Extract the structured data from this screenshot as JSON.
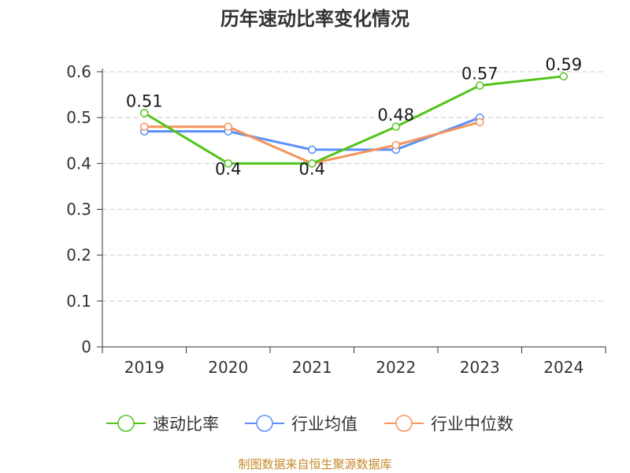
{
  "chart_data": {
    "type": "line",
    "title": "历年速动比率变化情况",
    "categories": [
      "2019",
      "2020",
      "2021",
      "2022",
      "2023",
      "2024"
    ],
    "ylim": [
      0,
      0.6
    ],
    "yticks": [
      "0",
      "0.1",
      "0.2",
      "0.3",
      "0.4",
      "0.5",
      "0.6"
    ],
    "grid": true,
    "legend_position": "bottom",
    "series": [
      {
        "name": "速动比率",
        "color": "#52c41a",
        "values": [
          0.51,
          0.4,
          0.4,
          0.48,
          0.57,
          0.59
        ],
        "labels": [
          "0.51",
          "0.4",
          "0.4",
          "0.48",
          "0.57",
          "0.59"
        ]
      },
      {
        "name": "行业均值",
        "color": "#5b8ff9",
        "values": [
          0.47,
          0.47,
          0.43,
          0.43,
          0.5,
          null
        ]
      },
      {
        "name": "行业中位数",
        "color": "#f6935a",
        "values": [
          0.48,
          0.48,
          0.4,
          0.44,
          0.49,
          null
        ]
      }
    ]
  },
  "footer": {
    "source": "制图数据来自恒生聚源数据库"
  }
}
